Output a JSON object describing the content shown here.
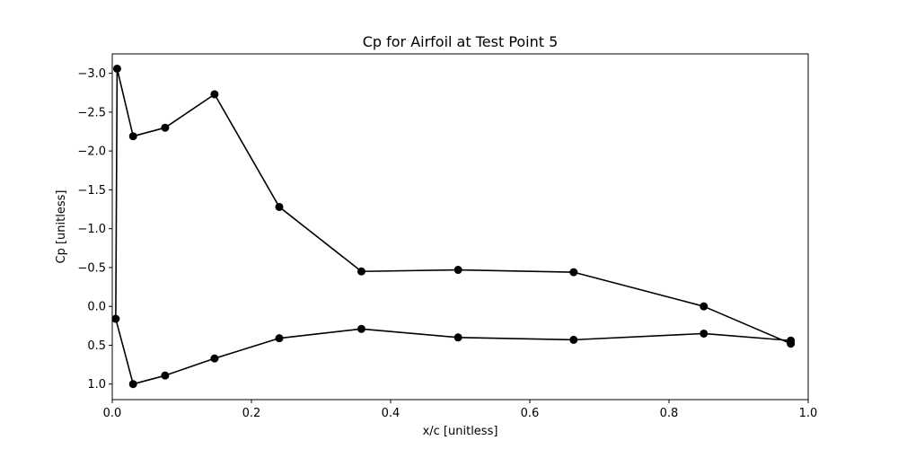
{
  "chart_data": {
    "type": "line",
    "title": "Cp for Airfoil at Test Point 5",
    "xlabel": "x/c [unitless]",
    "ylabel": "Cp [unitless]",
    "xlim": [
      0.0,
      1.0
    ],
    "ylim": [
      1.2,
      -3.25
    ],
    "y_inverted": true,
    "grid": false,
    "x_ticks": [
      0.0,
      0.2,
      0.4,
      0.6,
      0.8,
      1.0
    ],
    "x_tick_labels": [
      "0.0",
      "0.2",
      "0.4",
      "0.6",
      "0.8",
      "1.0"
    ],
    "y_ticks": [
      1.0,
      0.5,
      0.0,
      -0.5,
      -1.0,
      -1.5,
      -2.0,
      -2.5,
      -3.0
    ],
    "y_tick_labels": [
      "1.0",
      "0.5",
      "0.0",
      "−0.5",
      "−1.0",
      "−1.5",
      "−2.0",
      "−2.5",
      "−3.0"
    ],
    "series": [
      {
        "color": "#000000",
        "marker": "circle",
        "x": [
          0.975,
          0.85,
          0.663,
          0.497,
          0.358,
          0.24,
          0.147,
          0.076,
          0.03,
          0.007,
          0.005,
          0.03,
          0.076,
          0.147,
          0.24,
          0.358,
          0.497,
          0.663,
          0.85,
          0.975
        ],
        "y": [
          0.48,
          0.0,
          -0.44,
          -0.47,
          -0.45,
          -1.28,
          -2.73,
          -2.3,
          -2.19,
          -3.06,
          0.16,
          1.0,
          0.89,
          0.67,
          0.41,
          0.29,
          0.4,
          0.43,
          0.35,
          0.44
        ]
      }
    ]
  }
}
